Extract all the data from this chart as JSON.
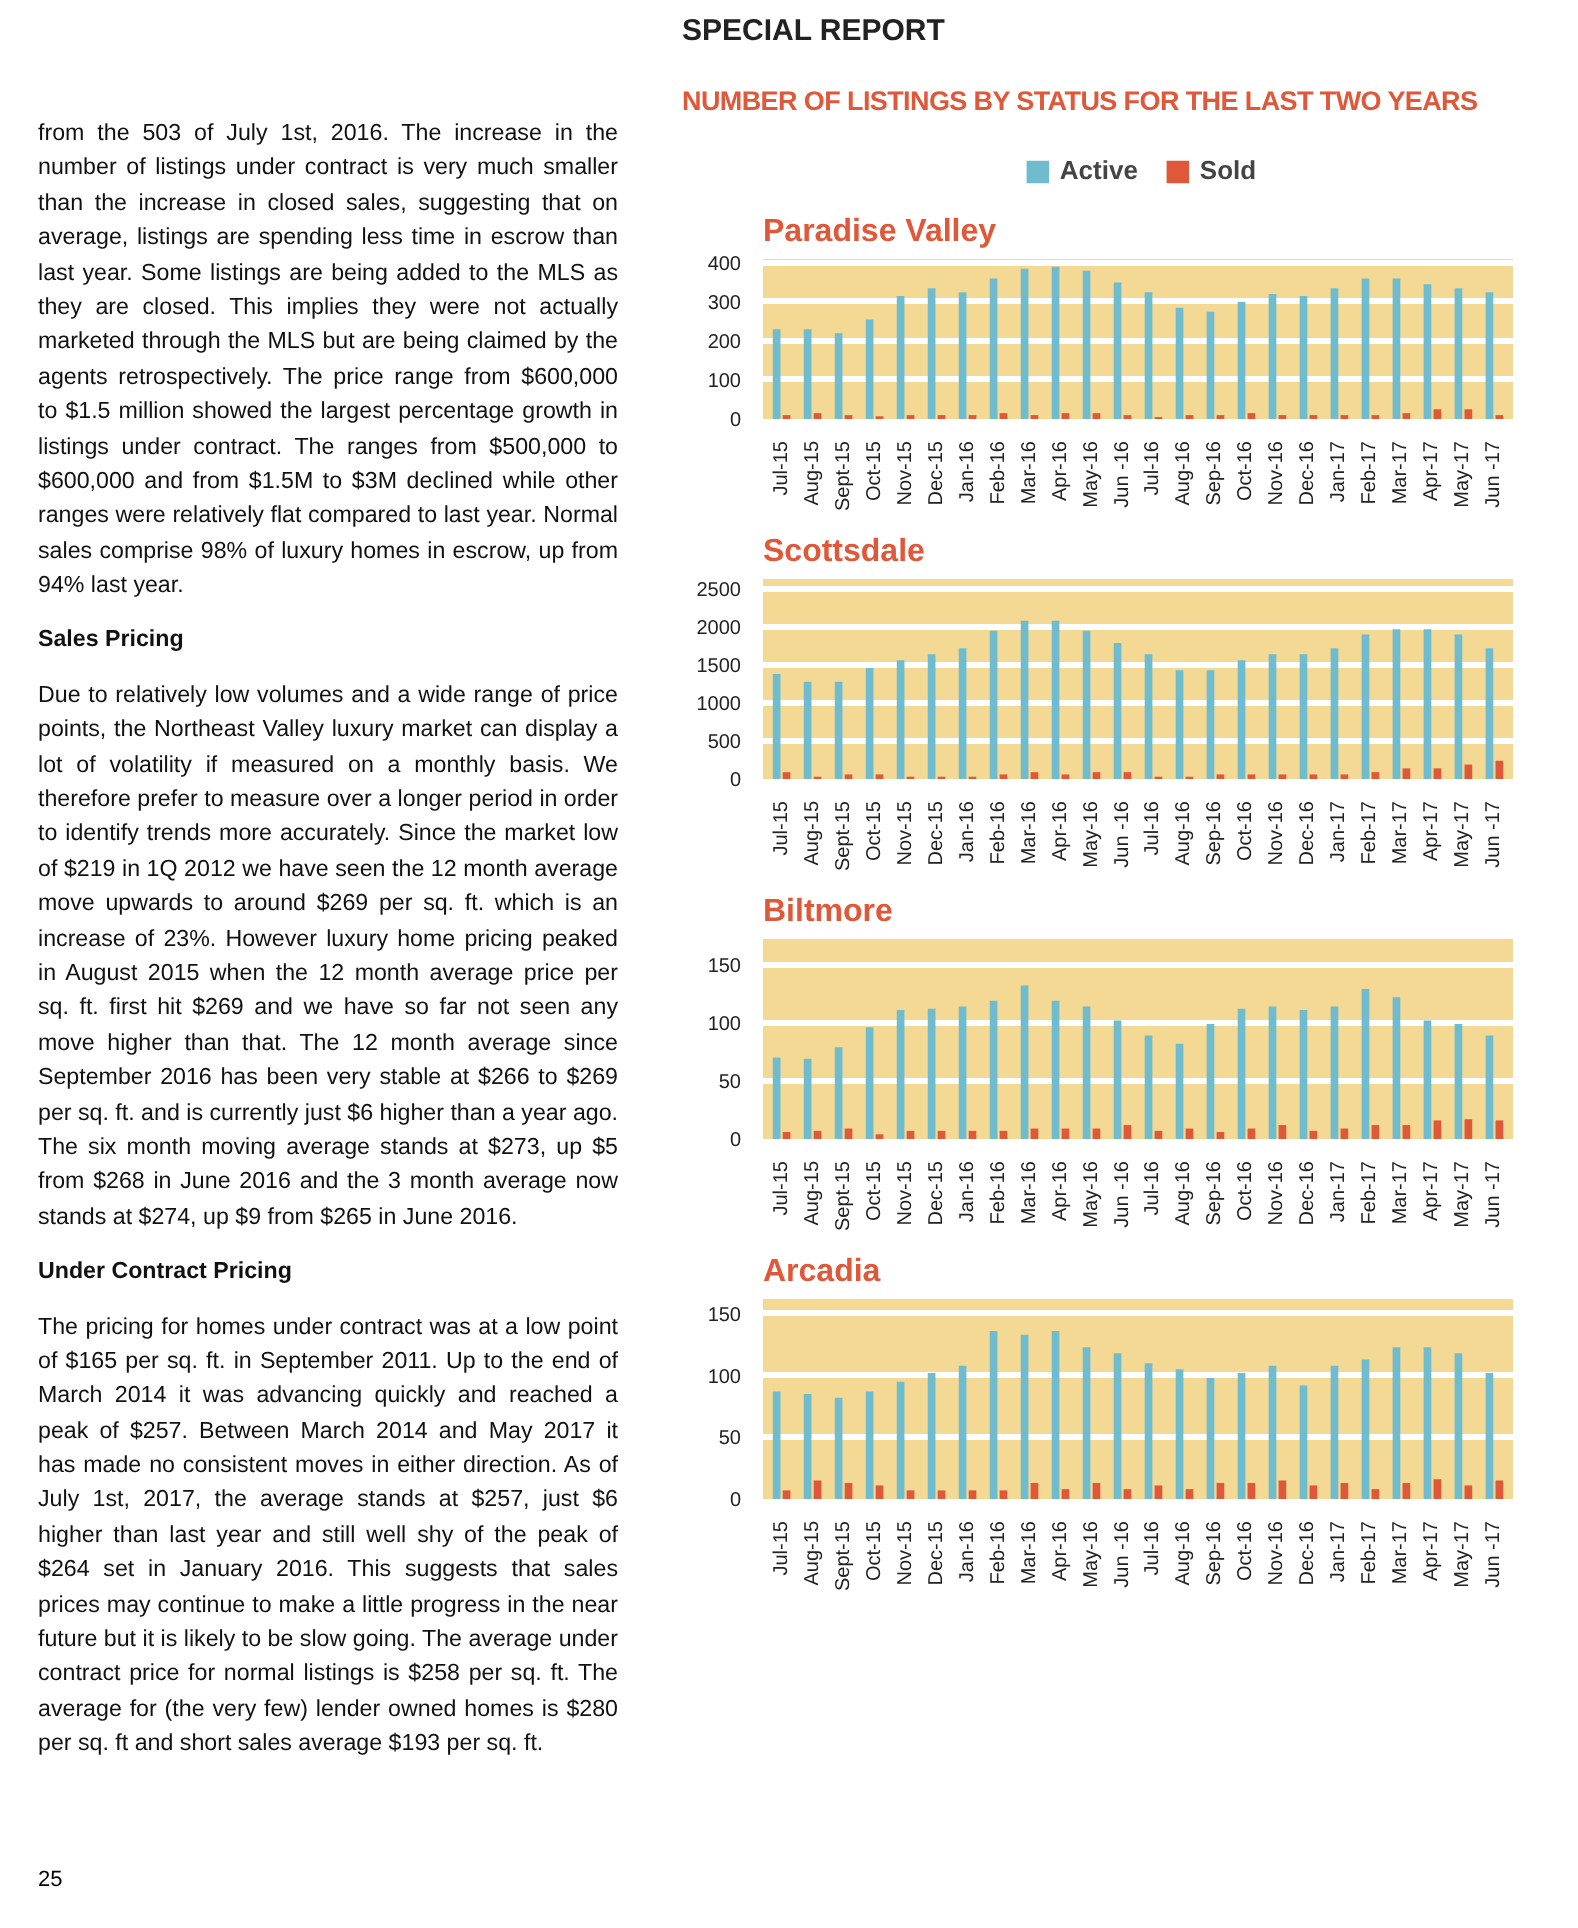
{
  "chart_data": [
    {
      "type": "bar",
      "title": "Paradise Valley",
      "legend": "top",
      "grid": "y",
      "categories": [
        "Jul-15",
        "Aug-15",
        "Sept-15",
        "Oct-15",
        "Nov-15",
        "Dec-15",
        "Jan-16",
        "Feb-16",
        "Mar-16",
        "Apr-16",
        "May-16",
        "Jun -16",
        "Jul-16",
        "Aug-16",
        "Sep-16",
        "Oct-16",
        "Nov-16",
        "Dec-16",
        "Jan-17",
        "Feb-17",
        "Mar-17",
        "Apr-17",
        "May-17",
        "Jun -17"
      ],
      "ylim": [
        0,
        410
      ],
      "yticks": [
        0,
        100,
        200,
        300,
        400
      ],
      "series": [
        {
          "name": "Active",
          "color": "#6fbccf",
          "values": [
            230,
            230,
            220,
            255,
            315,
            335,
            325,
            360,
            385,
            390,
            380,
            350,
            325,
            285,
            275,
            300,
            320,
            315,
            335,
            360,
            360,
            345,
            335,
            325
          ]
        },
        {
          "name": "Sold",
          "color": "#e0583a",
          "values": [
            10,
            15,
            10,
            7,
            10,
            10,
            10,
            15,
            10,
            15,
            15,
            10,
            5,
            10,
            10,
            15,
            10,
            10,
            10,
            10,
            15,
            25,
            25,
            10
          ]
        }
      ],
      "annotations": [
        "SPECIAL REPORT",
        "NUMBER OF LISTINGS BY STATUS FOR THE LAST TWO YEARS",
        "from the 503 of July 1st, 2016. The increase in the number of listings under contract is very much smaller than the increase in closed sales, suggesting that on average, listings are spending less time in escrow than last year. Some listings are being added to the MLS as they are closed. This implies they were not actually marketed through the MLS but are being claimed by the agents retrospectively. The price range from $600,000 to $1.5 million showed the largest percentage growth in listings under contract. The ranges from $500,000 to $600,000 and from $1.5M to $3M declined while other ranges were relatively flat compared to last year. Normal sales comprise 98% of luxury homes in escrow, up from 94% last year.",
        "Sales Pricing",
        "Due to relatively low volumes and a wide range of price points, the Northeast Valley luxury market can display a lot of volatility if measured on a monthly basis. We therefore prefer to measure over a longer period in order to identify trends more accurately. Since the market low of $219 in 1Q 2012 we have seen the 12 month average move upwards to around $269 per sq. ft. which is an increase of 23%. However luxury home pricing peaked in August 2015 when the 12 month average price per sq. ft. first hit $269 and we have so far not seen any move higher than that. The 12 month average since September 2016 has been very stable at $266 to $269 per sq. ft. and is currently just $6 higher than a year ago. The six month moving average stands at $273, up $5 from $268 in June 2016 and the 3 month average now stands at $274, up $9 from $265 in June 2016.",
        "Under Contract Pricing",
        "The pricing for homes under contract was at a low point of $165 per sq. ft. in September 2011. Up to the end of March 2014 it was advancing quickly and reached a peak of $257. Between March 2014 and May 2017 it has made no consistent moves in either direction. As of July 1st, 2017, the average stands at $257, just $6 higher than last year and still well shy of the peak of $264 set in January 2016. This suggests that sales prices may continue to make a little progress in the near future but it is likely to be slow going. The average under contract price for normal listings is $258 per sq. ft. The average for (the very few) lender owned homes is $280 per sq. ft and short sales average $193 per sq. ft.",
        "25"
      ]
    },
    {
      "type": "bar",
      "title": "Scottsdale",
      "grid": "y",
      "categories": [
        "Jul-15",
        "Aug-15",
        "Sept-15",
        "Oct-15",
        "Nov-15",
        "Dec-15",
        "Jan-16",
        "Feb-16",
        "Mar-16",
        "Apr-16",
        "May-16",
        "Jun -16",
        "Jul-16",
        "Aug-16",
        "Sep-16",
        "Oct-16",
        "Nov-16",
        "Dec-16",
        "Jan-17",
        "Feb-17",
        "Mar-17",
        "Apr-17",
        "May-17",
        "Jun -17"
      ],
      "ylim": [
        0,
        2630
      ],
      "yticks": [
        0,
        500,
        1000,
        1500,
        2000,
        2500
      ],
      "series": [
        {
          "color": "#6fbccf",
          "values": [
            1380,
            1280,
            1280,
            1460,
            1560,
            1640,
            1720,
            1950,
            2080,
            2080,
            1950,
            1790,
            1640,
            1430,
            1430,
            1560,
            1640,
            1640,
            1720,
            1900,
            1970,
            1970,
            1900,
            1720
          ]
        },
        {
          "color": "#e0583a",
          "values": [
            90,
            30,
            60,
            60,
            30,
            30,
            30,
            60,
            90,
            60,
            90,
            90,
            30,
            30,
            60,
            60,
            60,
            60,
            60,
            90,
            140,
            140,
            190,
            240
          ]
        }
      ]
    },
    {
      "type": "bar",
      "title": "Biltmore",
      "grid": "y",
      "categories": [
        "Jul-15",
        "Aug-15",
        "Sept-15",
        "Oct-15",
        "Nov-15",
        "Dec-15",
        "Jan-16",
        "Feb-16",
        "Mar-16",
        "Apr-16",
        "May-16",
        "Jun -16",
        "Jul-16",
        "Aug-16",
        "Sep-16",
        "Oct-16",
        "Nov-16",
        "Dec-16",
        "Jan-17",
        "Feb-17",
        "Mar-17",
        "Apr-17",
        "May-17",
        "Jun -17"
      ],
      "ylim": [
        0,
        172
      ],
      "yticks": [
        0,
        50,
        100,
        150
      ],
      "series": [
        {
          "color": "#6fbccf",
          "values": [
            70,
            69,
            79,
            96,
            111,
            112,
            114,
            119,
            132,
            119,
            114,
            102,
            89,
            82,
            99,
            112,
            114,
            111,
            114,
            129,
            122,
            102,
            99,
            89
          ]
        },
        {
          "color": "#e0583a",
          "values": [
            6,
            7,
            9,
            4,
            7,
            7,
            7,
            7,
            9,
            9,
            9,
            12,
            7,
            9,
            6,
            9,
            12,
            7,
            9,
            12,
            12,
            16,
            17,
            16
          ]
        }
      ]
    },
    {
      "type": "bar",
      "title": "Arcadia",
      "grid": "y",
      "categories": [
        "Jul-15",
        "Aug-15",
        "Sept-15",
        "Oct-15",
        "Nov-15",
        "Dec-15",
        "Jan-16",
        "Feb-16",
        "Mar-16",
        "Apr-16",
        "May-16",
        "Jun -16",
        "Jul-16",
        "Aug-16",
        "Sep-16",
        "Oct-16",
        "Nov-16",
        "Dec-16",
        "Jan-17",
        "Feb-17",
        "Mar-17",
        "Apr-17",
        "May-17",
        "Jun -17"
      ],
      "ylim": [
        0,
        162
      ],
      "yticks": [
        0,
        50,
        100,
        150
      ],
      "series": [
        {
          "color": "#6fbccf",
          "values": [
            87,
            85,
            82,
            87,
            95,
            102,
            108,
            136,
            133,
            136,
            123,
            118,
            110,
            105,
            98,
            102,
            108,
            92,
            108,
            113,
            123,
            123,
            118,
            102
          ]
        },
        {
          "color": "#e0583a",
          "values": [
            7,
            15,
            13,
            11,
            7,
            7,
            7,
            7,
            13,
            8,
            13,
            8,
            11,
            8,
            13,
            13,
            15,
            11,
            13,
            8,
            13,
            16,
            11,
            15
          ]
        }
      ]
    }
  ]
}
